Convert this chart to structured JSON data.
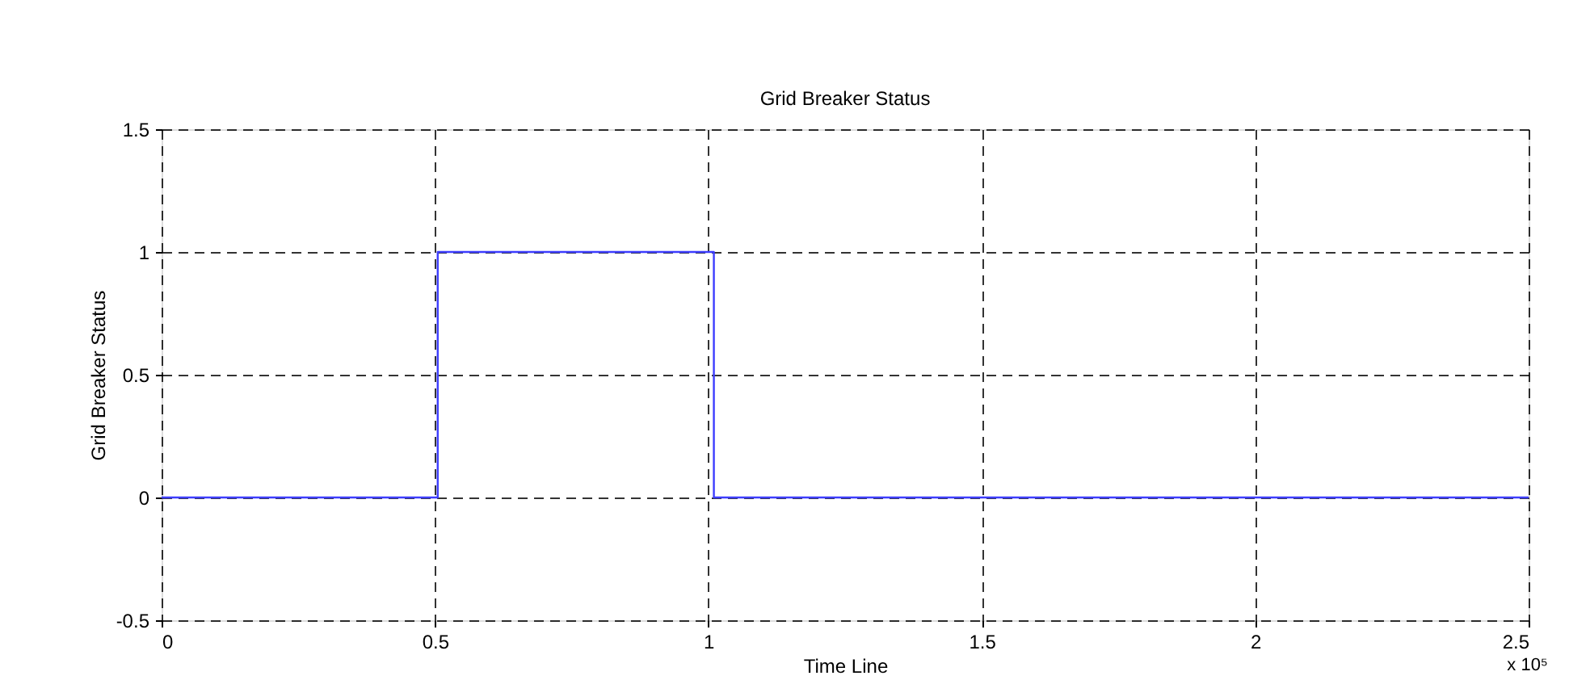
{
  "chart_data": {
    "type": "step",
    "title": "Grid Breaker Status",
    "xlabel": "Time Line",
    "ylabel": "Grid Breaker Status",
    "x": [
      0,
      0.505,
      1.01,
      2.5
    ],
    "series": [
      {
        "color": "#3d3dff",
        "values": [
          0,
          1,
          0,
          0
        ]
      }
    ],
    "xlim": [
      0,
      2.5
    ],
    "xticks": [
      0,
      0.5,
      1,
      1.5,
      2,
      2.5
    ],
    "ylim": [
      -0.5,
      1.5
    ],
    "yticks": [
      -0.5,
      0,
      0.5,
      1,
      1.5
    ],
    "grid": true,
    "line_style": "solid",
    "marker": "none",
    "annotations": [
      "x 10⁵"
    ]
  }
}
